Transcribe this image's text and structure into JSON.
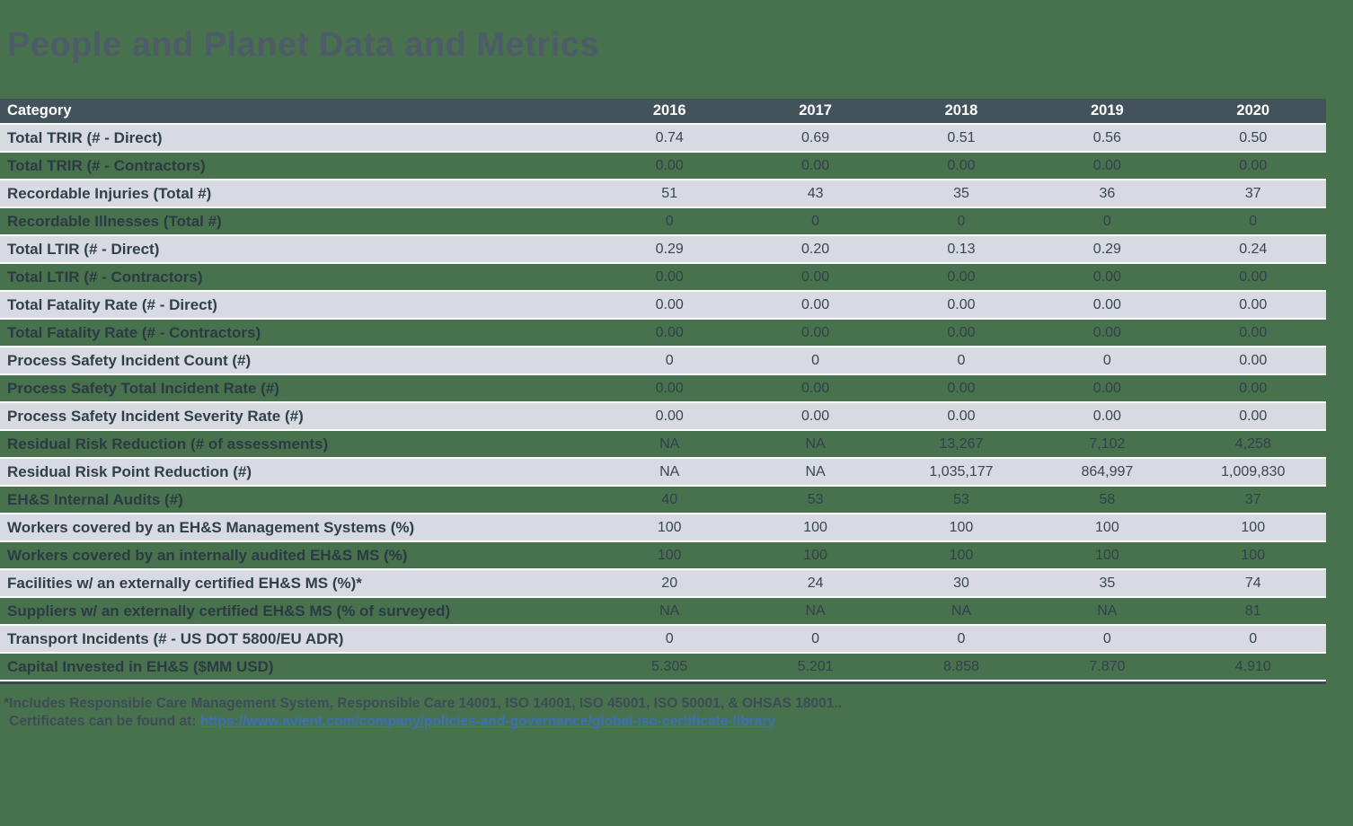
{
  "page": {
    "title": "People and Planet Data and Metrics"
  },
  "table": {
    "header": {
      "category_label": "Category",
      "years": [
        "2016",
        "2017",
        "2018",
        "2019",
        "2020"
      ]
    },
    "rows": [
      {
        "category": "Total TRIR (# - Direct)",
        "values": [
          "0.74",
          "0.69",
          "0.51",
          "0.56",
          "0.50"
        ],
        "variant": "light"
      },
      {
        "category": "Total TRIR (# - Contractors)",
        "values": [
          "0.00",
          "0.00",
          "0.00",
          "0.00",
          "0.00"
        ],
        "variant": "green"
      },
      {
        "category": "Recordable Injuries (Total #)",
        "values": [
          "51",
          "43",
          "35",
          "36",
          "37"
        ],
        "variant": "light"
      },
      {
        "category": "Recordable Illnesses (Total #)",
        "values": [
          "0",
          "0",
          "0",
          "0",
          "0"
        ],
        "variant": "green"
      },
      {
        "category": "Total LTIR (# - Direct)",
        "values": [
          "0.29",
          "0.20",
          "0.13",
          "0.29",
          "0.24"
        ],
        "variant": "light"
      },
      {
        "category": "Total LTIR (# - Contractors)",
        "values": [
          "0.00",
          "0.00",
          "0.00",
          "0.00",
          "0.00"
        ],
        "variant": "green"
      },
      {
        "category": "Total Fatality Rate (# - Direct)",
        "values": [
          "0.00",
          "0.00",
          "0.00",
          "0.00",
          "0.00"
        ],
        "variant": "light"
      },
      {
        "category": "Total Fatality Rate (# - Contractors)",
        "values": [
          "0.00",
          "0.00",
          "0.00",
          "0.00",
          "0.00"
        ],
        "variant": "green"
      },
      {
        "category": "Process Safety Incident Count (#)",
        "values": [
          "0",
          "0",
          "0",
          "0",
          "0.00"
        ],
        "variant": "light"
      },
      {
        "category": "Process Safety Total Incident Rate (#)",
        "values": [
          "0.00",
          "0.00",
          "0.00",
          "0.00",
          "0.00"
        ],
        "variant": "green"
      },
      {
        "category": "Process Safety Incident Severity Rate (#)",
        "values": [
          "0.00",
          "0.00",
          "0.00",
          "0.00",
          "0.00"
        ],
        "variant": "light"
      },
      {
        "category": "Residual Risk Reduction (# of assessments)",
        "values": [
          "NA",
          "NA",
          "13,267",
          "7,102",
          "4,258"
        ],
        "variant": "green"
      },
      {
        "category": "Residual Risk Point Reduction (#)",
        "values": [
          "NA",
          "NA",
          "1,035,177",
          "864,997",
          "1,009,830"
        ],
        "variant": "light"
      },
      {
        "category": "EH&S Internal Audits (#)",
        "values": [
          "40",
          "53",
          "53",
          "58",
          "37"
        ],
        "variant": "green"
      },
      {
        "category": "Workers covered by an EH&S Management Systems (%)",
        "values": [
          "100",
          "100",
          "100",
          "100",
          "100"
        ],
        "variant": "light"
      },
      {
        "category": "Workers covered by an internally audited EH&S MS (%)",
        "values": [
          "100",
          "100",
          "100",
          "100",
          "100"
        ],
        "variant": "green"
      },
      {
        "category": "Facilities w/ an externally certified EH&S MS (%)*",
        "values": [
          "20",
          "24",
          "30",
          "35",
          "74"
        ],
        "variant": "light"
      },
      {
        "category": "Suppliers w/ an externally certified EH&S MS (% of surveyed)",
        "values": [
          "NA",
          "NA",
          "NA",
          "NA",
          "81"
        ],
        "variant": "green"
      },
      {
        "category": "Transport Incidents (# - US DOT 5800/EU ADR)",
        "values": [
          "0",
          "0",
          "0",
          "0",
          "0"
        ],
        "variant": "light"
      },
      {
        "category": "Capital Invested in EH&S ($MM USD)",
        "values": [
          "5.305",
          "5.201",
          "8.858",
          "7.870",
          "4.910"
        ],
        "variant": "green"
      }
    ]
  },
  "footnote": {
    "line1": "*Includes Responsible Care Management System, Responsible Care 14001, ISO 14001, ISO 45001, ISO 50001, & OHSAS 18001..",
    "line2_prefix": "Certificates can be found at: ",
    "link_text": "https://www.avient.com/company/policies-and-governance/global-iso-certificate-library"
  },
  "colors": {
    "page_background": "#48714E",
    "header_background": "#43535C",
    "row_light_background": "#D7DBE1",
    "title_color": "#4D5C68",
    "text_color": "#313F4A",
    "link_color": "#3B6FB6",
    "bottom_border": "#3A4750"
  }
}
